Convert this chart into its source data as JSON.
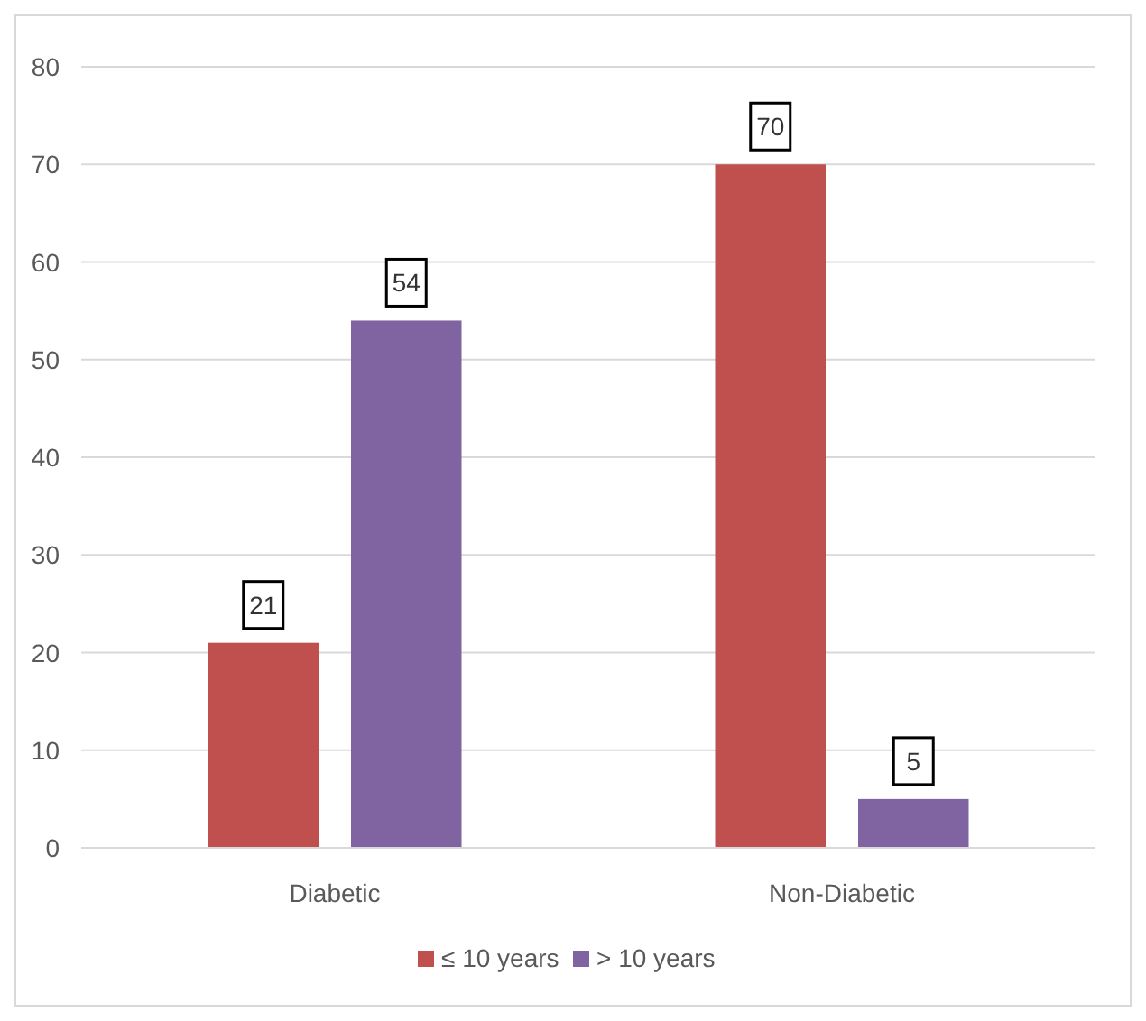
{
  "chart_data": {
    "type": "bar",
    "categories": [
      "Diabetic",
      "Non-Diabetic"
    ],
    "series": [
      {
        "name": "≤ 10 years",
        "color": "#c0504d",
        "values": [
          21,
          70
        ]
      },
      {
        "name": "> 10 years",
        "color": "#8064a2",
        "values": [
          54,
          5
        ]
      }
    ],
    "ylim": [
      0,
      80
    ],
    "yticks": [
      0,
      10,
      20,
      30,
      40,
      50,
      60,
      70,
      80
    ],
    "grid": "y",
    "legend": "bottom",
    "data_labels": true
  }
}
